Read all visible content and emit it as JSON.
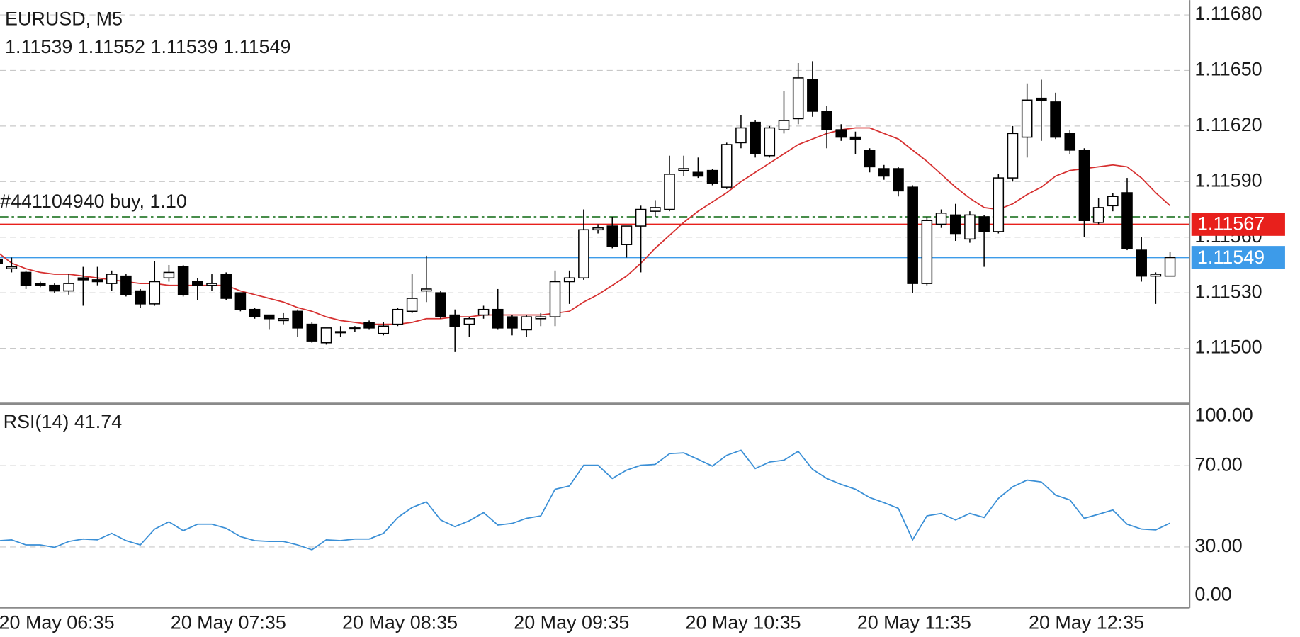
{
  "chart_data": [
    {
      "type": "candlestick",
      "title": "EURUSD, M5",
      "quote": "1.11539 1.11552 1.11539 1.11549",
      "categories": [
        "20 May 06:35",
        null,
        null,
        null,
        null,
        null,
        null,
        null,
        null,
        null,
        null,
        null,
        "20 May 07:35",
        null,
        null,
        null,
        null,
        null,
        null,
        null,
        null,
        null,
        null,
        null,
        "20 May 08:35",
        null,
        null,
        null,
        null,
        null,
        null,
        null,
        null,
        null,
        null,
        null,
        "20 May 09:35",
        null,
        null,
        null,
        null,
        null,
        null,
        null,
        null,
        null,
        null,
        null,
        "20 May 10:35",
        null,
        null,
        null,
        null,
        null,
        null,
        null,
        null,
        null,
        null,
        null,
        "20 May 11:35",
        null,
        null,
        null,
        null,
        null,
        null,
        null,
        null,
        null,
        null,
        null,
        "20 May 12:35",
        null,
        null,
        null,
        null,
        null,
        null,
        null,
        null,
        null,
        null
      ],
      "open": [
        1.11548,
        1.11543,
        1.11541,
        1.11535,
        1.11534,
        1.11531,
        1.11538,
        1.11537,
        1.11535,
        1.11539,
        1.11531,
        1.11524,
        1.11538,
        1.11544,
        1.11536,
        1.11534,
        1.1154,
        1.1153,
        1.11521,
        1.11518,
        1.11515,
        1.1152,
        1.11513,
        1.11503,
        1.11509,
        1.11511,
        1.11514,
        1.11508,
        1.11513,
        1.1152,
        1.11531,
        1.1153,
        1.11518,
        1.11513,
        1.11518,
        1.11521,
        1.11517,
        1.1151,
        1.11516,
        1.11517,
        1.11536,
        1.11538,
        1.11564,
        1.11566,
        1.11556,
        1.11566,
        1.11574,
        1.11575,
        1.11596,
        1.11595,
        1.11596,
        1.11587,
        1.11611,
        1.11622,
        1.11604,
        1.11618,
        1.11624,
        1.11645,
        1.11628,
        1.11618,
        1.11614,
        1.11607,
        1.11597,
        1.11597,
        1.11587,
        1.11535,
        1.11567,
        1.11572,
        1.11559,
        1.11571,
        1.11563,
        1.11592,
        1.11614,
        1.11635,
        1.11633,
        1.11616,
        1.11607,
        1.11568,
        1.11577,
        1.11584,
        1.11553,
        1.11539,
        1.11539
      ],
      "high": [
        1.11552,
        1.11549,
        1.11542,
        1.11536,
        1.11535,
        1.1154,
        1.11544,
        1.11544,
        1.11542,
        1.1154,
        1.11532,
        1.11547,
        1.11545,
        1.11545,
        1.11538,
        1.1154,
        1.11541,
        1.1153,
        1.11522,
        1.11518,
        1.11519,
        1.11521,
        1.11514,
        1.11511,
        1.11512,
        1.11512,
        1.11515,
        1.11514,
        1.11522,
        1.1154,
        1.1155,
        1.11531,
        1.11521,
        1.11517,
        1.11523,
        1.11532,
        1.11518,
        1.11518,
        1.11519,
        1.11542,
        1.11542,
        1.11575,
        1.11567,
        1.11571,
        1.11566,
        1.11577,
        1.1158,
        1.11604,
        1.11604,
        1.11603,
        1.11597,
        1.11611,
        1.11626,
        1.11623,
        1.1162,
        1.11639,
        1.11654,
        1.11655,
        1.11631,
        1.11621,
        1.11617,
        1.11608,
        1.11599,
        1.11598,
        1.11588,
        1.11571,
        1.11575,
        1.11578,
        1.11574,
        1.11572,
        1.11594,
        1.1162,
        1.11643,
        1.11645,
        1.11638,
        1.11618,
        1.11608,
        1.11581,
        1.11584,
        1.11592,
        1.1156,
        1.11541,
        1.11552
      ],
      "low": [
        1.11544,
        1.11541,
        1.11532,
        1.11533,
        1.1153,
        1.11529,
        1.11523,
        1.11534,
        1.11531,
        1.11528,
        1.11522,
        1.11523,
        1.11536,
        1.11528,
        1.11526,
        1.11531,
        1.11526,
        1.1152,
        1.11516,
        1.1151,
        1.11513,
        1.11506,
        1.11503,
        1.11502,
        1.11506,
        1.11509,
        1.1151,
        1.11507,
        1.11512,
        1.11519,
        1.11525,
        1.11516,
        1.11498,
        1.11506,
        1.11516,
        1.1151,
        1.11507,
        1.11506,
        1.11512,
        1.11512,
        1.11524,
        1.11537,
        1.11562,
        1.11554,
        1.11549,
        1.11541,
        1.11571,
        1.11574,
        1.11593,
        1.11592,
        1.11588,
        1.11586,
        1.11608,
        1.11603,
        1.11603,
        1.11616,
        1.11621,
        1.11625,
        1.11608,
        1.11612,
        1.11605,
        1.11595,
        1.11591,
        1.11582,
        1.1153,
        1.11534,
        1.11565,
        1.11558,
        1.11557,
        1.11544,
        1.11562,
        1.1159,
        1.11603,
        1.11612,
        1.11613,
        1.11605,
        1.1156,
        1.11567,
        1.11574,
        1.11553,
        1.11536,
        1.11524,
        1.11539
      ],
      "close": [
        1.11546,
        1.11544,
        1.11534,
        1.11534,
        1.11531,
        1.11535,
        1.11537,
        1.11536,
        1.1154,
        1.11529,
        1.11524,
        1.11536,
        1.11541,
        1.11529,
        1.11534,
        1.11535,
        1.11527,
        1.11521,
        1.11517,
        1.11516,
        1.11516,
        1.11511,
        1.11504,
        1.11511,
        1.11509,
        1.11511,
        1.11511,
        1.11512,
        1.11521,
        1.11527,
        1.11532,
        1.11517,
        1.11512,
        1.11516,
        1.11521,
        1.11511,
        1.11511,
        1.11517,
        1.11517,
        1.11536,
        1.11538,
        1.11564,
        1.11565,
        1.11555,
        1.11566,
        1.11575,
        1.11576,
        1.11594,
        1.11597,
        1.11593,
        1.11589,
        1.1161,
        1.11619,
        1.11605,
        1.11619,
        1.11623,
        1.11646,
        1.11628,
        1.11618,
        1.11614,
        1.11613,
        1.11598,
        1.11593,
        1.11585,
        1.11535,
        1.11569,
        1.11573,
        1.11562,
        1.11572,
        1.11563,
        1.11592,
        1.11616,
        1.11634,
        1.11634,
        1.11614,
        1.11607,
        1.11569,
        1.11576,
        1.11582,
        1.11554,
        1.11539,
        1.1154,
        1.11549
      ],
      "up_color": "#ffffff",
      "down_color": "#000000",
      "ma": {
        "color": "#d63030",
        "values": [
          1.11552,
          1.11546,
          1.11543,
          1.11541,
          1.1154,
          1.1154,
          1.11539,
          1.11538,
          1.11537,
          1.11536,
          1.11535,
          1.11535,
          1.11534,
          1.11534,
          1.11534,
          1.11534,
          1.11534,
          1.11531,
          1.11529,
          1.11527,
          1.11525,
          1.11522,
          1.1152,
          1.11517,
          1.11515,
          1.11514,
          1.11513,
          1.11513,
          1.11513,
          1.11514,
          1.11516,
          1.11516,
          1.11517,
          1.11517,
          1.11518,
          1.11518,
          1.11518,
          1.11518,
          1.11518,
          1.11519,
          1.1152,
          1.11525,
          1.11529,
          1.11534,
          1.11539,
          1.11546,
          1.11554,
          1.11561,
          1.11568,
          1.11574,
          1.11579,
          1.11584,
          1.1159,
          1.11595,
          1.116,
          1.11605,
          1.1161,
          1.11613,
          1.11616,
          1.11618,
          1.11619,
          1.11619,
          1.11616,
          1.11613,
          1.11607,
          1.11601,
          1.11594,
          1.11587,
          1.11581,
          1.11576,
          1.11575,
          1.11578,
          1.11583,
          1.11587,
          1.11593,
          1.11596,
          1.11597,
          1.11598,
          1.11599,
          1.11598,
          1.11592,
          1.11584,
          1.11577
        ]
      },
      "position": {
        "label": "#441104940 buy, 1.10",
        "value": 1.11571,
        "color": "#2e7d32"
      },
      "price_tags": [
        {
          "value": 1.11567,
          "color": "#e8201c"
        },
        {
          "value": 1.11549,
          "color": "#3d9be9"
        }
      ],
      "ylim": [
        1.1147,
        1.11688
      ],
      "yticks": [
        {
          "value": 1.1168,
          "label": "1.11680"
        },
        {
          "value": 1.1165,
          "label": "1.11650"
        },
        {
          "value": 1.1162,
          "label": "1.11620"
        },
        {
          "value": 1.1159,
          "label": "1.11590"
        },
        {
          "value": 1.1156,
          "label": "1.11560"
        },
        {
          "value": 1.1153,
          "label": "1.11530"
        },
        {
          "value": 1.115,
          "label": "1.11500"
        }
      ],
      "grid": true
    },
    {
      "type": "line",
      "title": "RSI(14) 41.74",
      "color": "#3a8fd6",
      "values": [
        33.0,
        33.5,
        31.0,
        31.0,
        29.8,
        32.7,
        33.9,
        33.5,
        36.7,
        33.1,
        31.0,
        38.8,
        42.4,
        38.0,
        41.2,
        41.2,
        39.2,
        35.1,
        33.1,
        32.7,
        32.7,
        31.0,
        28.6,
        33.5,
        33.1,
        33.9,
        33.9,
        36.7,
        44.5,
        49.4,
        52.2,
        43.3,
        40.0,
        42.9,
        46.9,
        40.8,
        41.6,
        44.1,
        45.3,
        58.4,
        60.0,
        70.2,
        70.2,
        63.7,
        67.8,
        70.2,
        70.6,
        75.9,
        76.3,
        73.1,
        69.8,
        75.1,
        77.6,
        68.6,
        71.8,
        72.7,
        77.1,
        68.2,
        63.7,
        60.8,
        58.4,
        54.3,
        51.8,
        49.0,
        33.5,
        45.3,
        46.5,
        43.3,
        46.5,
        44.5,
        53.9,
        59.6,
        62.9,
        62.0,
        55.5,
        53.1,
        44.1,
        46.1,
        48.2,
        41.2,
        38.8,
        38.4,
        41.74
      ],
      "ylim": [
        0,
        100
      ],
      "yticks": [
        {
          "value": 100,
          "label": "100.00"
        },
        {
          "value": 70,
          "label": "70.00"
        },
        {
          "value": 30,
          "label": "30.00"
        },
        {
          "value": 0,
          "label": "0.00"
        }
      ],
      "grid": true
    }
  ]
}
